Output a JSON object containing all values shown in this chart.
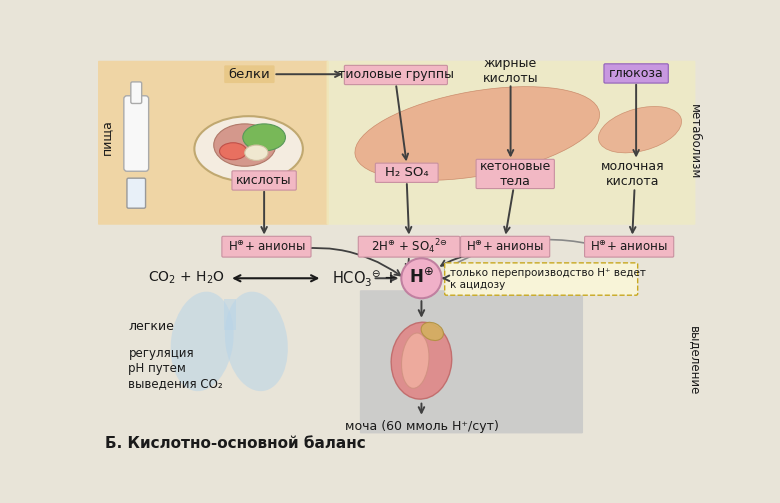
{
  "bg_color": "#e8e4d8",
  "title": "Б. Кислотно-основной баланс",
  "title_fontsize": 11,
  "pink_box_color": "#f2b8c4",
  "pink_box_edge": "#d090a0",
  "orange_bg": "#f0d4a0",
  "yellow_bg": "#f0ecc0",
  "purple_box_color": "#c8a0e0",
  "purple_box_edge": "#9060b8",
  "gray_bg": "#c8c8c8",
  "text_color": "#1a1a1a",
  "arrow_color": "#404040",
  "labels": {
    "pisha": "пища",
    "belki": "белки",
    "kisloty": "кислоты",
    "tiolovye": "тиоловые группы",
    "zhirnye": "жирные\nкислоты",
    "glyukoza": "глюкоза",
    "metabolizm": "метаболизм",
    "h2so4": "H₂ SO₄",
    "ketono": "кетоновые\nтела",
    "molochnaya": "молочная\nкислота",
    "hco3": "HCO₃⁻",
    "co2_h2o": "CO₂ + H₂O",
    "tolko": "только перепроизводство Н⁺ ведет\nк ацидозу",
    "legkie": "легкие",
    "regulyaciya": "регуляция\npH путем\nвыведения CO₂",
    "vydelenie": "выделение",
    "mocha": "моча (60 ммоль Н⁺/сут)",
    "plus": "+"
  }
}
